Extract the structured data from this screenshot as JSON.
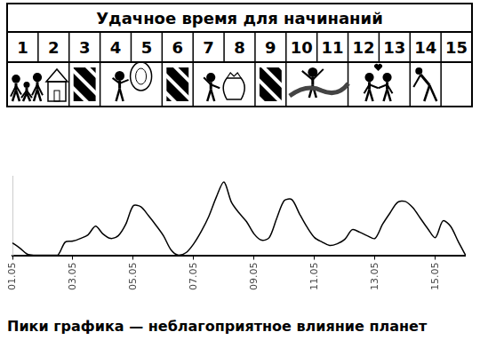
{
  "table": {
    "title": "Удачное время для начинаний",
    "days": [
      1,
      2,
      3,
      4,
      5,
      6,
      7,
      8,
      9,
      10,
      11,
      12,
      13,
      14,
      15
    ],
    "hatched": [
      3,
      6,
      9
    ]
  },
  "chart_data": {
    "type": "line",
    "categories": [
      "01.05",
      null,
      null,
      null,
      null,
      null,
      null,
      null,
      "03.05",
      null,
      null,
      null,
      null,
      null,
      null,
      null,
      "05.05",
      null,
      null,
      null,
      null,
      null,
      null,
      null,
      "07.05",
      null,
      null,
      null,
      null,
      null,
      null,
      null,
      "09.05",
      null,
      null,
      null,
      null,
      null,
      null,
      null,
      "11.05",
      null,
      null,
      null,
      null,
      null,
      null,
      null,
      "13.05",
      null,
      null,
      null,
      null,
      null,
      null,
      null,
      "15.05",
      null,
      null,
      null,
      null
    ],
    "values": [
      14,
      8,
      1,
      0,
      0,
      0,
      0,
      15,
      16,
      19,
      23,
      33,
      24,
      19,
      22,
      35,
      56,
      55,
      45,
      34,
      22,
      6,
      0,
      3,
      13,
      27,
      44,
      66,
      83,
      60,
      48,
      38,
      24,
      17,
      20,
      42,
      62,
      63,
      47,
      32,
      20,
      15,
      11,
      13,
      18,
      29,
      26,
      22,
      19,
      35,
      48,
      60,
      61,
      54,
      42,
      30,
      20,
      39,
      33,
      16,
      0
    ],
    "color": "#000000",
    "ylim": [
      0,
      90
    ],
    "tick_labels": "x",
    "grid": false
  },
  "caption": "Пики графика — неблагоприятное влияние планет"
}
